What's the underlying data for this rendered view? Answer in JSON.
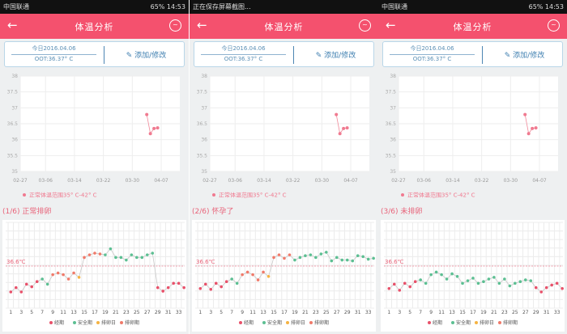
{
  "colors": {
    "accent": "#f4516e",
    "period": "#e8516a",
    "safe": "#5cbf92",
    "ovulation_day": "#f5b342",
    "ovulation_period": "#f07a6a"
  },
  "panels": [
    {
      "status": {
        "left": "中国联通",
        "right": "65% 14:53"
      },
      "header": {
        "title": "体温分析"
      },
      "card": {
        "today": "今日2016.04.06",
        "oot": "OOT:36.37° C",
        "edit": "添加/修改"
      },
      "section_title": "(1/6) 正常排卵",
      "temps": [
        36.3,
        36.35,
        36.3,
        36.39,
        36.36,
        36.42,
        36.45,
        36.39,
        36.5,
        36.52,
        36.5,
        36.45,
        36.52,
        36.47,
        36.7,
        36.73,
        36.75,
        36.74,
        36.73,
        36.8,
        36.7,
        36.7,
        36.67,
        36.73,
        36.7,
        36.7,
        36.73,
        36.75,
        36.35,
        36.31,
        36.35,
        36.4,
        36.4,
        36.35
      ],
      "phases": "PPPPPPSSOOOOODOOOOSSSSSSSSSSPPPPPP"
    },
    {
      "status": {
        "left": "正在保存屏幕截图...",
        "right": ""
      },
      "header": {
        "title": "体温分析"
      },
      "card": {
        "today": "今日2016.04.06",
        "oot": "OOT:36.37° C",
        "edit": "添加/修改"
      },
      "section_title": "(2/6) 怀孕了",
      "temps": [
        36.34,
        36.39,
        36.33,
        36.4,
        36.36,
        36.42,
        36.45,
        36.4,
        36.5,
        36.53,
        36.5,
        36.44,
        36.53,
        36.48,
        36.7,
        36.73,
        36.69,
        36.73,
        36.67,
        36.7,
        36.72,
        36.73,
        36.7,
        36.74,
        36.76,
        36.66,
        36.7,
        36.67,
        36.67,
        36.66,
        36.72,
        36.71,
        36.68,
        36.69
      ],
      "phases": "PPPPPPSSOOOOODOOOOSSSSSSSSSSSSSSSS"
    },
    {
      "status": {
        "left": "中国联通",
        "right": "65% 14:53"
      },
      "header": {
        "title": "体温分析"
      },
      "card": {
        "today": "今日2016.04.06",
        "oot": "OOT:36.37° C",
        "edit": "添加/修改"
      },
      "section_title": "(3/6) 未排卵",
      "temps": [
        36.34,
        36.39,
        36.32,
        36.4,
        36.36,
        36.42,
        36.44,
        36.4,
        36.5,
        36.53,
        36.5,
        36.45,
        36.51,
        36.48,
        36.4,
        36.43,
        36.46,
        36.4,
        36.42,
        36.45,
        36.47,
        36.4,
        36.45,
        36.37,
        36.4,
        36.42,
        36.44,
        36.43,
        36.35,
        36.3,
        36.35,
        36.38,
        36.4,
        36.34
      ],
      "phases": "PPPPPPSSSSSSSSSSSSSSSSSSSSSSPPPPPP"
    }
  ],
  "top_chart": {
    "type": "line",
    "y_ticks": [
      "38",
      "37.5",
      "37",
      "36.5",
      "36",
      "35.5",
      "35"
    ],
    "ylim": [
      35,
      38
    ],
    "x_ticks": [
      "02-27",
      "03-06",
      "03-14",
      "03-22",
      "03-30",
      "04-07"
    ],
    "points": [
      {
        "date": "04-03",
        "temp": 36.79
      },
      {
        "date": "04-04",
        "temp": 36.19
      },
      {
        "date": "04-05",
        "temp": 36.35
      },
      {
        "date": "04-06",
        "temp": 36.37
      }
    ],
    "legend": "正常体温范围35° C-42° C"
  },
  "cycle_chart": {
    "type": "line",
    "reference_label": "36.6℃",
    "reference": 36.6,
    "x_ticks": [
      "1",
      "3",
      "5",
      "7",
      "9",
      "11",
      "13",
      "15",
      "17",
      "19",
      "21",
      "23",
      "25",
      "27",
      "29",
      "31",
      "33"
    ],
    "legend": [
      {
        "key": "P",
        "label": "经期"
      },
      {
        "key": "S",
        "label": "安全期"
      },
      {
        "key": "D",
        "label": "排卵日"
      },
      {
        "key": "O",
        "label": "排卵期"
      }
    ]
  }
}
